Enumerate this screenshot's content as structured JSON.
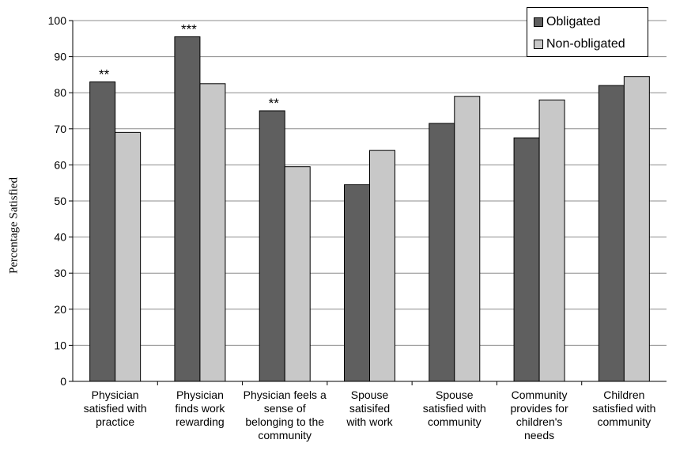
{
  "chart_data": {
    "type": "bar",
    "categories": [
      "Physician\nsatisfied with\npractice",
      "Physician\nfinds work\nrewarding",
      "Physician feels a\nsense of\nbelonging to the\ncommunity",
      "Spouse\nsatisifed\nwith work",
      "Spouse\nsatisfied with\ncommunity",
      "Community\nprovides for\nchildren's\nneeds",
      "Children\nsatisfied with\ncommunity"
    ],
    "series": [
      {
        "name": "Obligated",
        "color": "#5f5f5f",
        "values": [
          83,
          95.5,
          75,
          54.5,
          71.5,
          67.5,
          82
        ]
      },
      {
        "name": "Non-obligated",
        "color": "#c8c8c8",
        "values": [
          69,
          82.5,
          59.5,
          64,
          79,
          78,
          84.5
        ]
      }
    ],
    "annotations": [
      "**",
      "***",
      "**",
      "",
      "",
      "",
      ""
    ],
    "ylabel": "Percentage  Satisfied",
    "xlabel": "",
    "ylim": [
      0,
      100
    ],
    "yticks": [
      "0",
      "10",
      "20",
      "30",
      "40",
      "50",
      "60",
      "70",
      "80",
      "90",
      "100"
    ],
    "grid": true,
    "legend_position": "top-right"
  }
}
